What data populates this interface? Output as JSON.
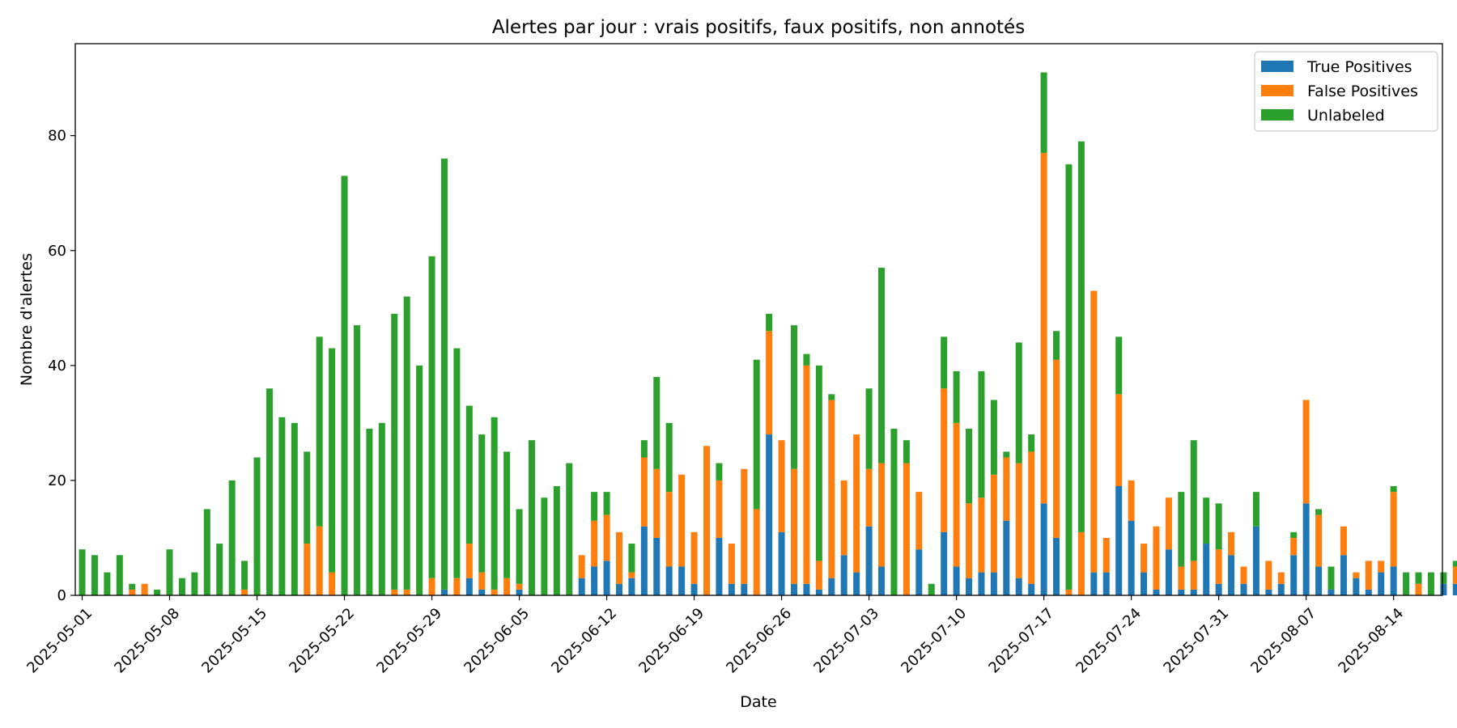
{
  "chart_data": {
    "type": "bar",
    "stacked": true,
    "title": "Alertes par jour : vrais positifs, faux positifs, non annotés",
    "xlabel": "Date",
    "ylabel": "Nombre d'alertes",
    "ylim": [
      0,
      96
    ],
    "yticks": [
      0,
      20,
      40,
      60,
      80
    ],
    "start_date": "2025-05-01",
    "xtick_labels": [
      "2025-05-01",
      "2025-05-08",
      "2025-05-15",
      "2025-05-22",
      "2025-05-29",
      "2025-06-05",
      "2025-06-12",
      "2025-06-19",
      "2025-06-26",
      "2025-07-03",
      "2025-07-10",
      "2025-07-17",
      "2025-07-24",
      "2025-07-31",
      "2025-08-07",
      "2025-08-14"
    ],
    "legend_position": "upper right",
    "grid": false,
    "series": [
      {
        "name": "True Positives",
        "color": "#1f77b4",
        "values": [
          0,
          0,
          0,
          0,
          0,
          0,
          0,
          0,
          0,
          0,
          0,
          0,
          0,
          0,
          0,
          0,
          0,
          0,
          0,
          0,
          0,
          0,
          0,
          0,
          0,
          0,
          0,
          0,
          0,
          1,
          0,
          3,
          1,
          0,
          0,
          1,
          0,
          0,
          0,
          0,
          3,
          5,
          6,
          2,
          3,
          12,
          10,
          5,
          5,
          2,
          0,
          10,
          2,
          2,
          0,
          28,
          11,
          2,
          2,
          1,
          3,
          7,
          4,
          12,
          5,
          0,
          0,
          8,
          0,
          11,
          5,
          3,
          4,
          4,
          13,
          3,
          2,
          16,
          10,
          0,
          0,
          4,
          4,
          19,
          13,
          4,
          1,
          8,
          1,
          1,
          9,
          2,
          7,
          2,
          12,
          1,
          2,
          7,
          16,
          5,
          1,
          7,
          3,
          1,
          4,
          5,
          0,
          0,
          0,
          2,
          2
        ]
      },
      {
        "name": "False Positives",
        "color": "#ff7f0e",
        "values": [
          0,
          0,
          0,
          0,
          1,
          2,
          0,
          0,
          0,
          0,
          0,
          0,
          0,
          1,
          0,
          0,
          0,
          0,
          9,
          12,
          4,
          0,
          0,
          0,
          0,
          1,
          1,
          0,
          3,
          0,
          3,
          6,
          3,
          1,
          3,
          1,
          0,
          0,
          0,
          0,
          4,
          8,
          8,
          9,
          1,
          12,
          12,
          13,
          16,
          9,
          26,
          10,
          7,
          20,
          15,
          18,
          16,
          20,
          38,
          5,
          31,
          13,
          24,
          10,
          18,
          0,
          23,
          10,
          0,
          25,
          25,
          13,
          13,
          17,
          11,
          20,
          23,
          61,
          31,
          1,
          11,
          49,
          6,
          16,
          7,
          5,
          11,
          9,
          4,
          5,
          0,
          6,
          4,
          3,
          0,
          5,
          2,
          3,
          18,
          9,
          0,
          5,
          1,
          5,
          2,
          13,
          0,
          2,
          0,
          0,
          3
        ]
      },
      {
        "name": "Unlabeled",
        "color": "#2ca02c",
        "values": [
          8,
          7,
          4,
          7,
          1,
          0,
          1,
          8,
          3,
          4,
          15,
          9,
          20,
          5,
          24,
          36,
          31,
          30,
          16,
          33,
          39,
          73,
          47,
          29,
          30,
          48,
          51,
          40,
          56,
          75,
          40,
          24,
          24,
          30,
          22,
          13,
          27,
          17,
          19,
          23,
          0,
          5,
          4,
          0,
          5,
          3,
          16,
          12,
          0,
          0,
          0,
          3,
          0,
          0,
          26,
          3,
          0,
          25,
          2,
          34,
          1,
          0,
          0,
          14,
          34,
          29,
          4,
          0,
          2,
          9,
          9,
          13,
          22,
          13,
          1,
          21,
          3,
          14,
          5,
          74,
          68,
          0,
          0,
          10,
          0,
          0,
          0,
          0,
          13,
          21,
          8,
          8,
          0,
          0,
          6,
          0,
          0,
          1,
          0,
          1,
          4,
          0,
          0,
          0,
          0,
          1,
          4,
          2,
          4,
          2,
          1
        ]
      }
    ]
  }
}
